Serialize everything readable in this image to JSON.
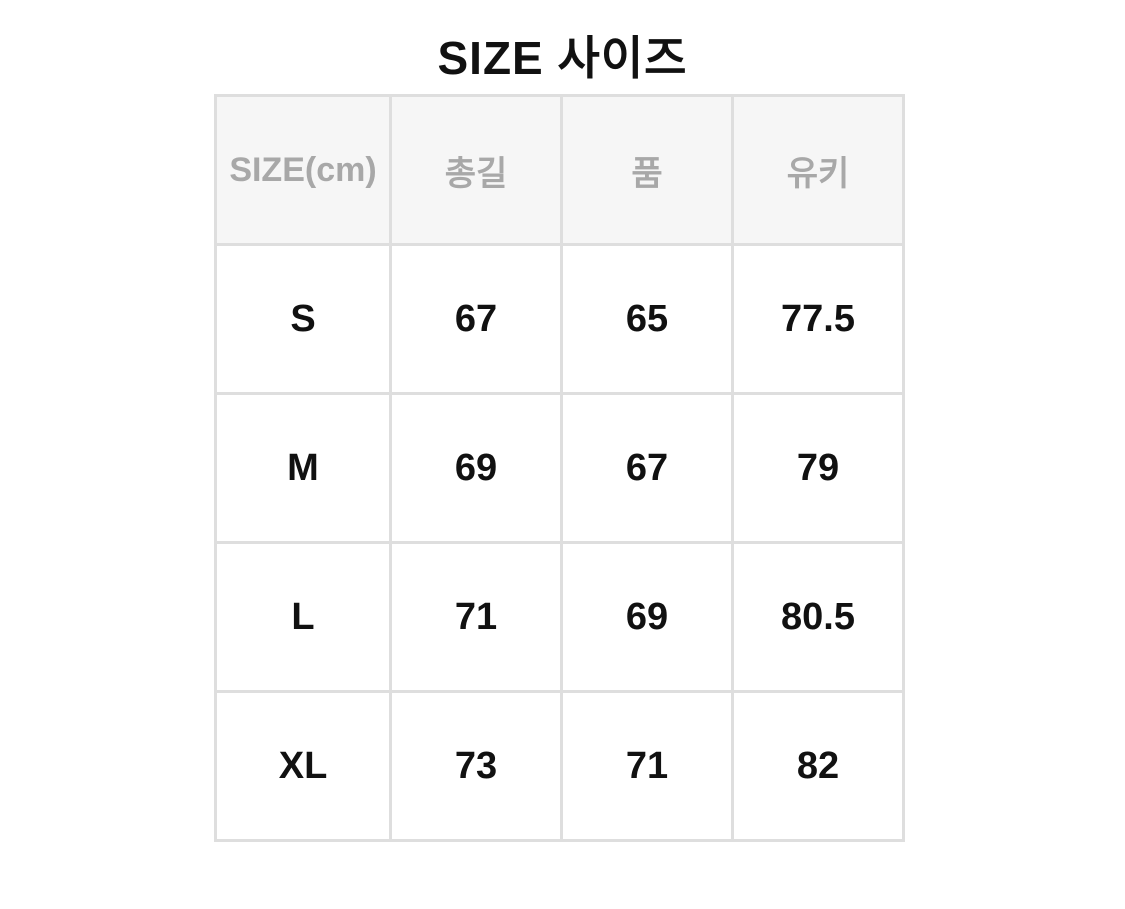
{
  "title": "SIZE 사이즈",
  "table": {
    "headers": [
      "SIZE(cm)",
      "총길",
      "품",
      "유키"
    ],
    "rows": [
      [
        "S",
        "67",
        "65",
        "77.5"
      ],
      [
        "M",
        "69",
        "67",
        "79"
      ],
      [
        "L",
        "71",
        "69",
        "80.5"
      ],
      [
        "XL",
        "73",
        "71",
        "82"
      ]
    ]
  }
}
